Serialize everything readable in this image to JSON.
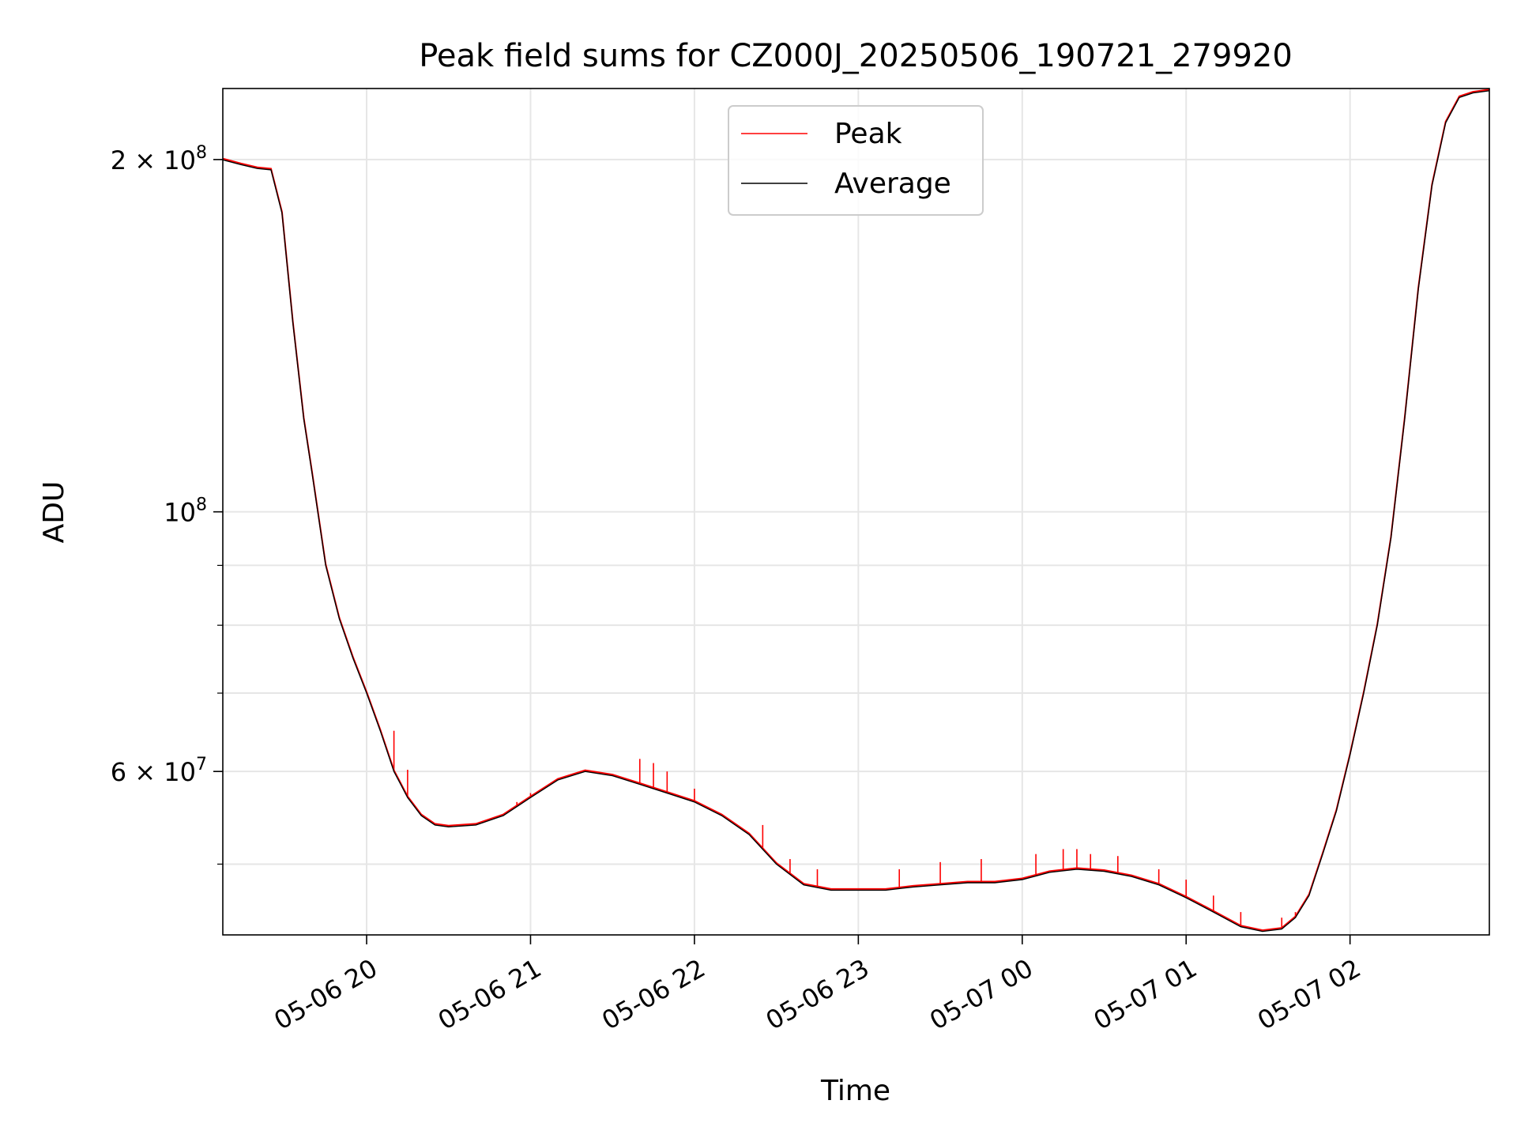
{
  "chart_data": {
    "type": "line",
    "title": "Peak field sums for CZ000J_20250506_190721_279920",
    "xlabel": "Time",
    "ylabel": "ADU",
    "y_scale": "log",
    "x_range": [
      "2025-05-06T19:07:21",
      "2025-05-07T02:51:00"
    ],
    "ylim": [
      43500000,
      230000000
    ],
    "grid": true,
    "legend_position": "upper center",
    "x_ticks": [
      {
        "value": "2025-05-06T20:00",
        "label": "05-06 20"
      },
      {
        "value": "2025-05-06T21:00",
        "label": "05-06 21"
      },
      {
        "value": "2025-05-06T22:00",
        "label": "05-06 22"
      },
      {
        "value": "2025-05-06T23:00",
        "label": "05-06 23"
      },
      {
        "value": "2025-05-07T00:00",
        "label": "05-07 00"
      },
      {
        "value": "2025-05-07T01:00",
        "label": "05-07 01"
      },
      {
        "value": "2025-05-07T02:00",
        "label": "05-07 02"
      }
    ],
    "y_ticks_major": [
      {
        "value": 200000000,
        "mantissa": "2",
        "base": "10",
        "exp": "8"
      },
      {
        "value": 100000000,
        "mantissa": "",
        "base": "10",
        "exp": "8"
      },
      {
        "value": 60000000,
        "mantissa": "6",
        "base": "10",
        "exp": "7"
      }
    ],
    "y_ticks_minor": [
      50000000,
      70000000,
      80000000,
      90000000
    ],
    "series": [
      {
        "name": "Peak",
        "color": "#ff0000",
        "spike_color": "#ff0000"
      },
      {
        "name": "Average",
        "color": "#000000"
      }
    ],
    "x": [
      "2025-05-06T19:07",
      "2025-05-06T19:14",
      "2025-05-06T19:20",
      "2025-05-06T19:25",
      "2025-05-06T19:29",
      "2025-05-06T19:33",
      "2025-05-06T19:37",
      "2025-05-06T19:40",
      "2025-05-06T19:45",
      "2025-05-06T19:50",
      "2025-05-06T19:55",
      "2025-05-06T20:00",
      "2025-05-06T20:05",
      "2025-05-06T20:10",
      "2025-05-06T20:15",
      "2025-05-06T20:20",
      "2025-05-06T20:25",
      "2025-05-06T20:30",
      "2025-05-06T20:40",
      "2025-05-06T20:50",
      "2025-05-06T21:00",
      "2025-05-06T21:10",
      "2025-05-06T21:20",
      "2025-05-06T21:30",
      "2025-05-06T21:40",
      "2025-05-06T21:50",
      "2025-05-06T22:00",
      "2025-05-06T22:10",
      "2025-05-06T22:20",
      "2025-05-06T22:30",
      "2025-05-06T22:40",
      "2025-05-06T22:50",
      "2025-05-06T23:00",
      "2025-05-06T23:10",
      "2025-05-06T23:20",
      "2025-05-06T23:30",
      "2025-05-06T23:40",
      "2025-05-06T23:50",
      "2025-05-07T00:00",
      "2025-05-07T00:10",
      "2025-05-07T00:20",
      "2025-05-07T00:30",
      "2025-05-07T00:40",
      "2025-05-07T00:50",
      "2025-05-07T01:00",
      "2025-05-07T01:10",
      "2025-05-07T01:20",
      "2025-05-07T01:28",
      "2025-05-07T01:35",
      "2025-05-07T01:40",
      "2025-05-07T01:45",
      "2025-05-07T01:50",
      "2025-05-07T01:55",
      "2025-05-07T02:00",
      "2025-05-07T02:05",
      "2025-05-07T02:10",
      "2025-05-07T02:15",
      "2025-05-07T02:20",
      "2025-05-07T02:25",
      "2025-05-07T02:30",
      "2025-05-07T02:35",
      "2025-05-07T02:40",
      "2025-05-07T02:45",
      "2025-05-07T02:51"
    ],
    "average": [
      200000000,
      198000000,
      196500000,
      196000000,
      180000000,
      145000000,
      120000000,
      108000000,
      90000000,
      81000000,
      75000000,
      70000000,
      65000000,
      60000000,
      57000000,
      55000000,
      54000000,
      53800000,
      54000000,
      55000000,
      57000000,
      59000000,
      60000000,
      59500000,
      58500000,
      57500000,
      56500000,
      55000000,
      53000000,
      50000000,
      48000000,
      47500000,
      47500000,
      47500000,
      47800000,
      48000000,
      48200000,
      48200000,
      48500000,
      49200000,
      49500000,
      49300000,
      48800000,
      48000000,
      46800000,
      45500000,
      44200000,
      43800000,
      44000000,
      45000000,
      47000000,
      51000000,
      55500000,
      62000000,
      70000000,
      80000000,
      95000000,
      120000000,
      155000000,
      190000000,
      215000000,
      226000000,
      228000000,
      229000000
    ],
    "peak_spikes": [
      {
        "x": "2025-05-06T20:10",
        "value": 65000000
      },
      {
        "x": "2025-05-06T20:15",
        "value": 60200000
      },
      {
        "x": "2025-05-06T20:55",
        "value": 56500000
      },
      {
        "x": "2025-05-06T21:00",
        "value": 57500000
      },
      {
        "x": "2025-05-06T21:40",
        "value": 61500000
      },
      {
        "x": "2025-05-06T21:45",
        "value": 61000000
      },
      {
        "x": "2025-05-06T21:50",
        "value": 60000000
      },
      {
        "x": "2025-05-06T22:00",
        "value": 58000000
      },
      {
        "x": "2025-05-06T22:25",
        "value": 54000000
      },
      {
        "x": "2025-05-06T22:35",
        "value": 50500000
      },
      {
        "x": "2025-05-06T22:45",
        "value": 49500000
      },
      {
        "x": "2025-05-06T23:15",
        "value": 49500000
      },
      {
        "x": "2025-05-06T23:30",
        "value": 50200000
      },
      {
        "x": "2025-05-06T23:45",
        "value": 50500000
      },
      {
        "x": "2025-05-07T00:05",
        "value": 51000000
      },
      {
        "x": "2025-05-07T00:15",
        "value": 51500000
      },
      {
        "x": "2025-05-07T00:20",
        "value": 51500000
      },
      {
        "x": "2025-05-07T00:25",
        "value": 51000000
      },
      {
        "x": "2025-05-07T00:35",
        "value": 50800000
      },
      {
        "x": "2025-05-07T00:50",
        "value": 49500000
      },
      {
        "x": "2025-05-07T01:00",
        "value": 48500000
      },
      {
        "x": "2025-05-07T01:10",
        "value": 47000000
      },
      {
        "x": "2025-05-07T01:20",
        "value": 45500000
      },
      {
        "x": "2025-05-07T01:35",
        "value": 45000000
      },
      {
        "x": "2025-05-07T01:40",
        "value": 45500000
      }
    ]
  }
}
